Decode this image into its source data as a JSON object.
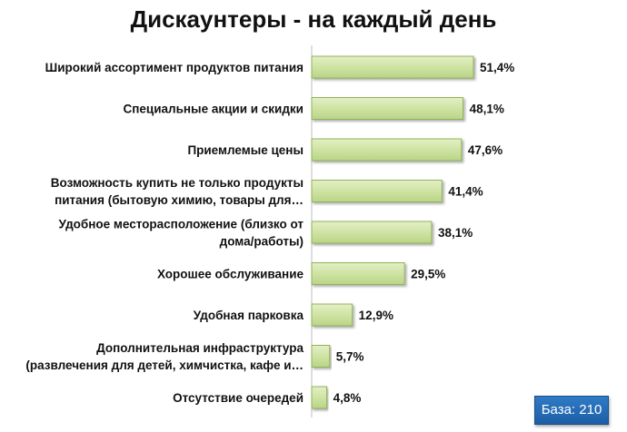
{
  "chart_data": {
    "type": "bar",
    "orientation": "horizontal",
    "title": "Дискаунтеры - на каждый день",
    "categories": [
      [
        "Широкий ассортимент  продуктов питания"
      ],
      [
        "Специальные акции и скидки"
      ],
      [
        "Приемлемые  цены"
      ],
      [
        "Возможность купить не только продукты",
        "питания (бытовую химию, товары для…"
      ],
      [
        "Удобное месторасположение (близко от",
        "дома/работы)"
      ],
      [
        "Хорошее обслуживание"
      ],
      [
        "Удобная парковка"
      ],
      [
        "Дополнительная инфраструктура",
        "(развлечения для детей, химчистка, кафе и…"
      ],
      [
        "Отсутствие очередей"
      ]
    ],
    "values": [
      51.4,
      48.1,
      47.6,
      41.4,
      38.1,
      29.5,
      12.9,
      5.7,
      4.8
    ],
    "value_labels": [
      "51,4%",
      "48,1%",
      "47,6%",
      "41,4%",
      "38,1%",
      "29,5%",
      "12,9%",
      "5,7%",
      "4,8%"
    ],
    "xlim": [
      0,
      60
    ],
    "bar_color": "#cfe3a3",
    "bar_border_color": "#8fb35a",
    "grid": false,
    "legend": "none"
  },
  "footer": {
    "base_label": "База: 210",
    "badge_color": "#1f66b0"
  }
}
